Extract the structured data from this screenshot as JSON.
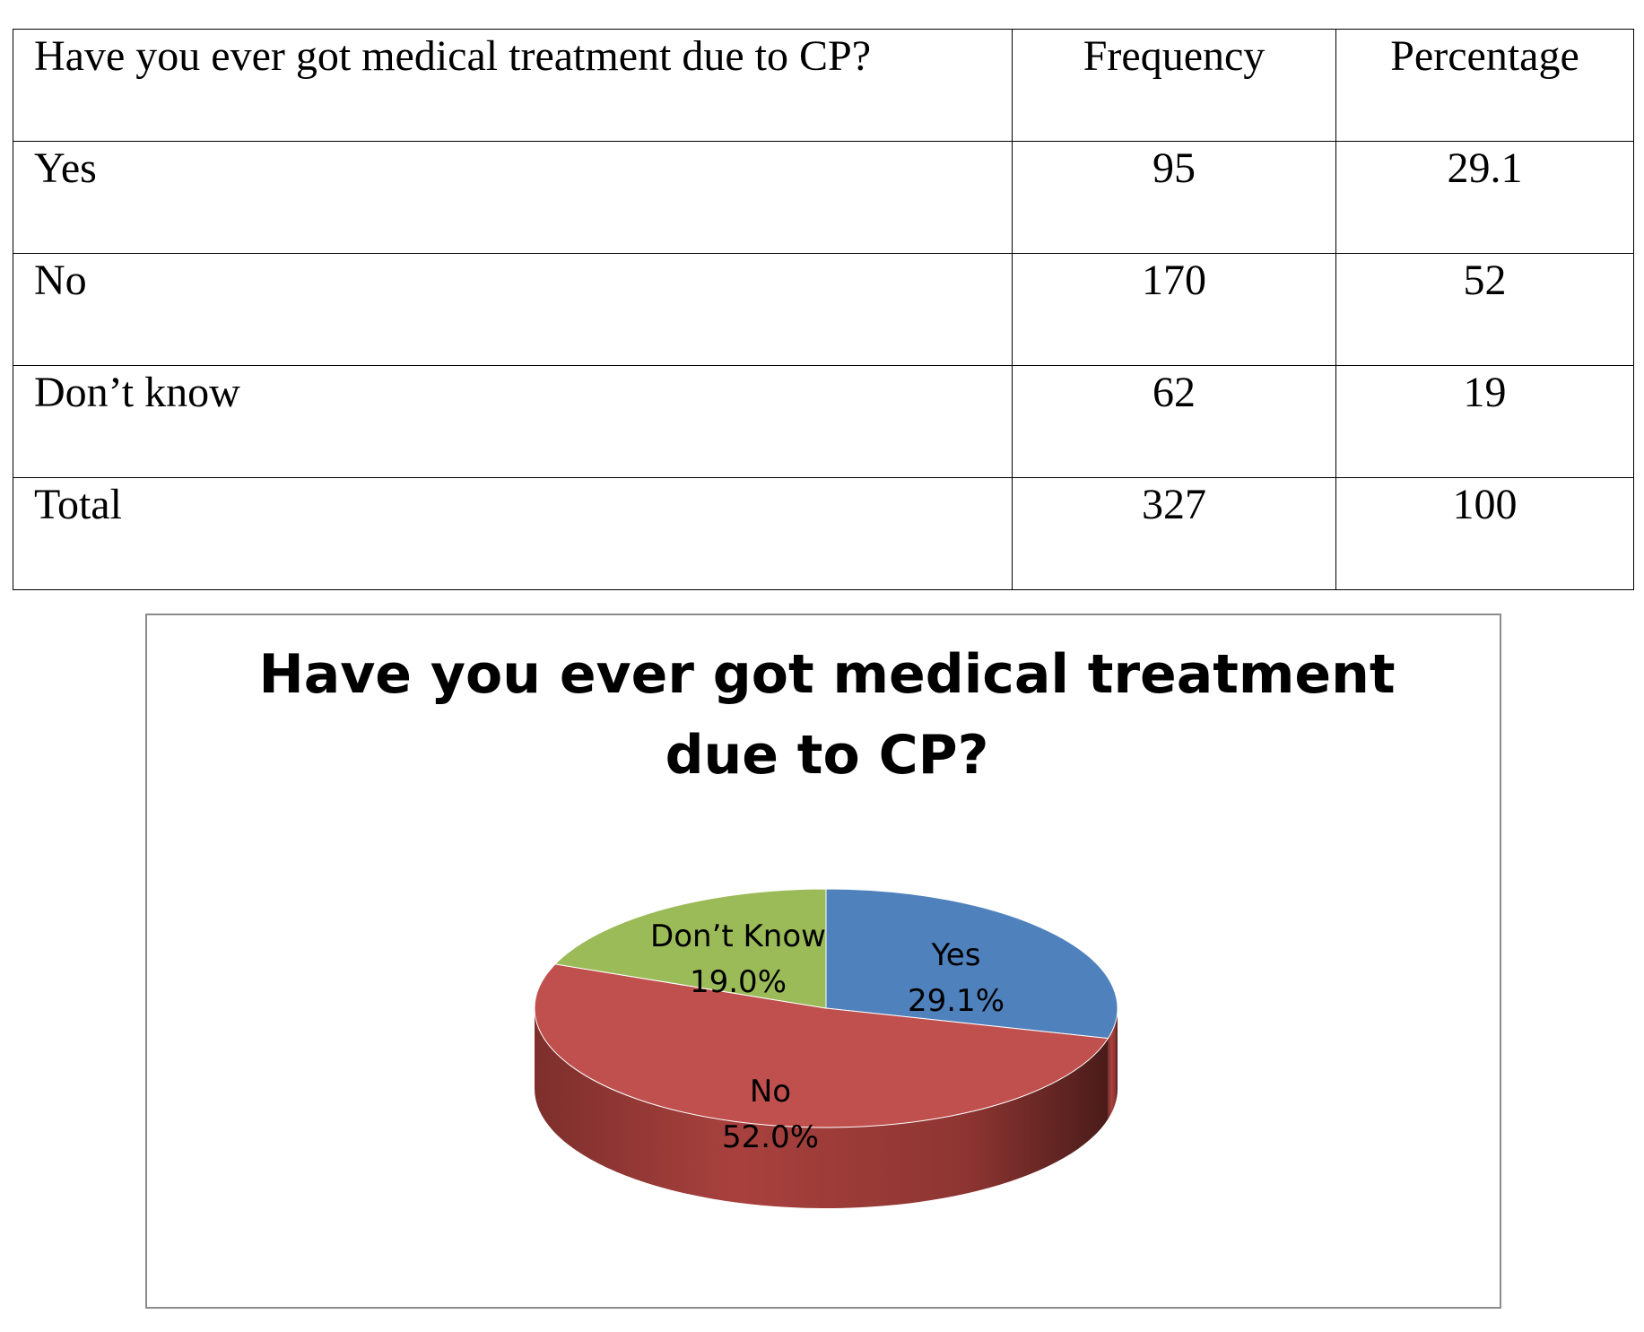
{
  "table": {
    "headers": [
      "Have you ever got medical treatment due to CP?",
      "Frequency",
      "Percentage"
    ],
    "rows": [
      [
        "Yes",
        "95",
        "29.1"
      ],
      [
        "No",
        "170",
        "52"
      ],
      [
        "Don’t know",
        "62",
        "19"
      ],
      [
        "Total",
        "327",
        "100"
      ]
    ]
  },
  "chart_data": {
    "type": "pie",
    "title": "Have you ever got medical treatment due to CP?",
    "title_lines": [
      "Have you ever got medical treatment",
      "due to CP?"
    ],
    "slices": [
      {
        "label": "Yes",
        "value": 29.1,
        "value_label": "29.1%",
        "color": "#4F81BD"
      },
      {
        "label": "No",
        "value": 52.0,
        "value_label": "52.0%",
        "color": "#C0504D"
      },
      {
        "label": "Don’t Know",
        "value": 19.0,
        "value_label": "19.0%",
        "color": "#9BBB59"
      }
    ],
    "style": "3d",
    "legend": "none"
  }
}
